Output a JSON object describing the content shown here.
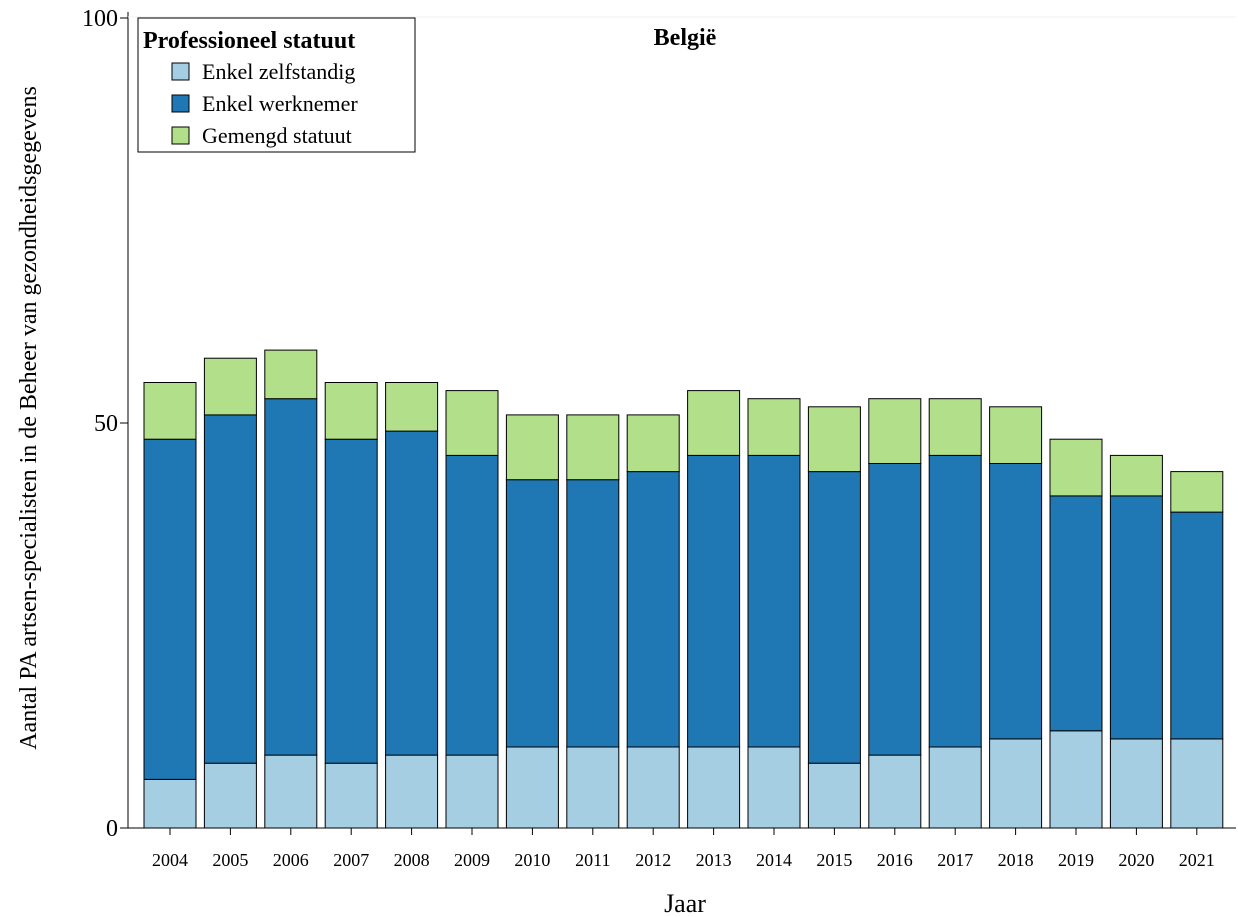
{
  "chart_data": {
    "type": "bar",
    "stacked": true,
    "title": "België",
    "xlabel": "Jaar",
    "ylabel": "Aantal PA artsen-specialisten in de Beheer van gezondheidsgegevens",
    "ylim": [
      0,
      100
    ],
    "yticks": [
      0,
      50,
      100
    ],
    "grid": false,
    "legend": {
      "title": "Professioneel statuut",
      "placement": "top-left"
    },
    "categories": [
      "2004",
      "2005",
      "2006",
      "2007",
      "2008",
      "2009",
      "2010",
      "2011",
      "2012",
      "2013",
      "2014",
      "2015",
      "2016",
      "2017",
      "2018",
      "2019",
      "2020",
      "2021"
    ],
    "series": [
      {
        "name": "Enkel zelfstandig",
        "color": "#a6cee3",
        "values": [
          6,
          8,
          9,
          8,
          9,
          9,
          10,
          10,
          10,
          10,
          10,
          8,
          9,
          10,
          11,
          12,
          11,
          11
        ]
      },
      {
        "name": "Enkel werknemer",
        "color": "#1f78b4",
        "values": [
          42,
          43,
          44,
          40,
          40,
          37,
          33,
          33,
          34,
          36,
          36,
          36,
          36,
          36,
          34,
          29,
          30,
          28
        ]
      },
      {
        "name": "Gemengd statuut",
        "color": "#b2df8a",
        "values": [
          7,
          7,
          6,
          7,
          6,
          8,
          8,
          8,
          7,
          8,
          7,
          8,
          8,
          7,
          7,
          7,
          5,
          5
        ]
      }
    ]
  }
}
